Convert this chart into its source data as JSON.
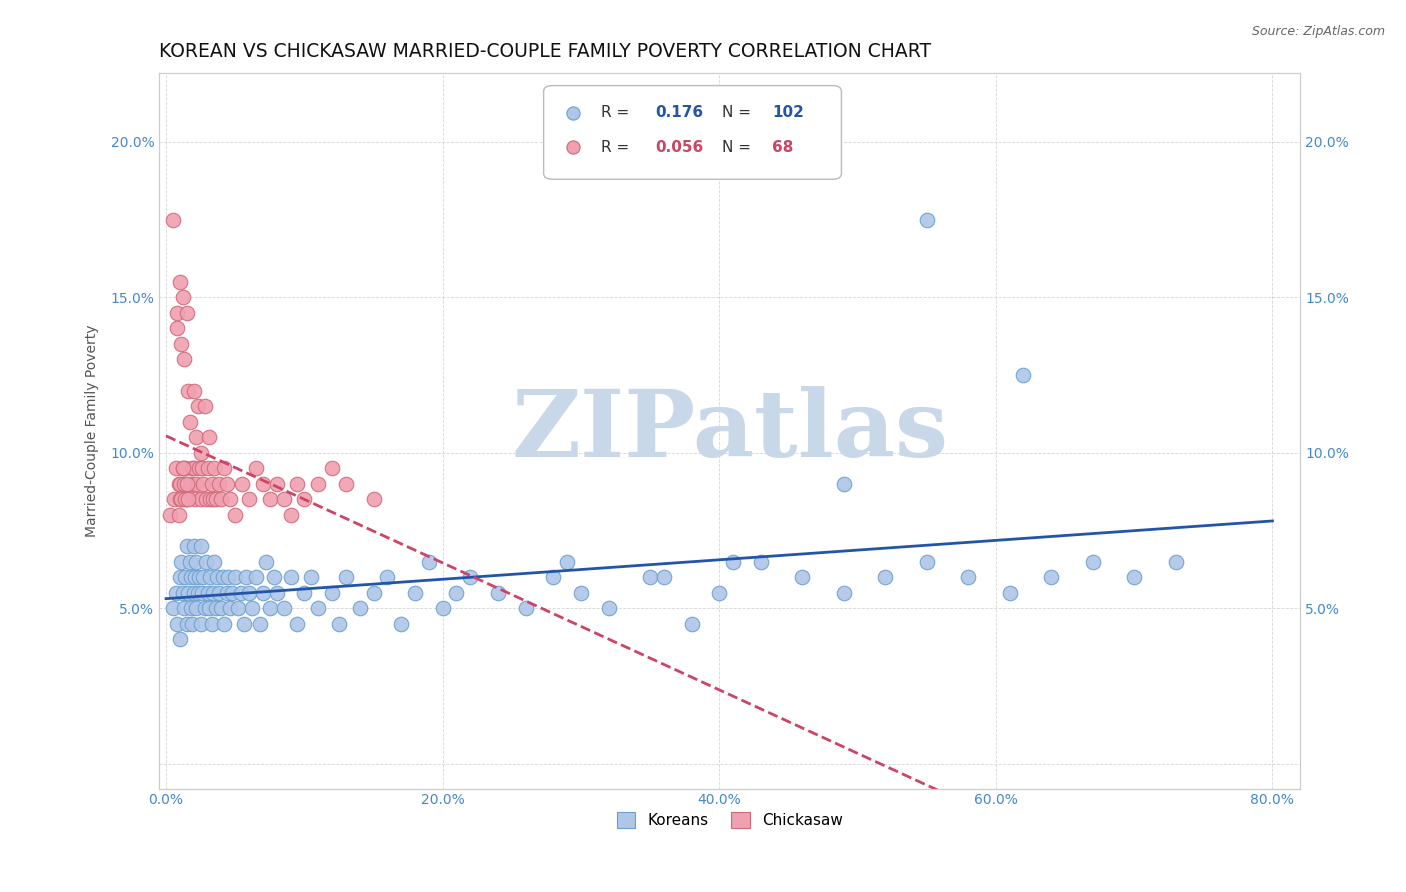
{
  "title": "KOREAN VS CHICKASAW MARRIED-COUPLE FAMILY POVERTY CORRELATION CHART",
  "source": "Source: ZipAtlas.com",
  "ylabel": "Married-Couple Family Poverty",
  "xlim": [
    -0.005,
    0.82
  ],
  "ylim": [
    -0.008,
    0.222
  ],
  "xticks": [
    0.0,
    0.2,
    0.4,
    0.6,
    0.8
  ],
  "yticks": [
    0.0,
    0.05,
    0.1,
    0.15,
    0.2
  ],
  "xtick_labels": [
    "0.0%",
    "20.0%",
    "40.0%",
    "60.0%",
    "80.0%"
  ],
  "ytick_labels": [
    "",
    "5.0%",
    "10.0%",
    "15.0%",
    "20.0%"
  ],
  "korean_R": 0.176,
  "korean_N": 102,
  "chickasaw_R": 0.056,
  "chickasaw_N": 68,
  "korean_color": "#aec6e8",
  "korean_edge": "#6a9fd0",
  "chickasaw_color": "#f0a0b0",
  "chickasaw_edge": "#d06878",
  "korean_trend_color": "#2255aa",
  "chickasaw_trend_color": "#cc4466",
  "watermark": "ZIPatlas",
  "watermark_color": "#c8d8e8",
  "title_fontsize": 13.5,
  "axis_label_fontsize": 10,
  "tick_fontsize": 10,
  "korean_x": [
    0.005,
    0.007,
    0.008,
    0.01,
    0.01,
    0.011,
    0.012,
    0.013,
    0.014,
    0.015,
    0.015,
    0.016,
    0.017,
    0.018,
    0.018,
    0.019,
    0.02,
    0.02,
    0.021,
    0.022,
    0.022,
    0.023,
    0.024,
    0.025,
    0.025,
    0.026,
    0.027,
    0.028,
    0.029,
    0.03,
    0.031,
    0.032,
    0.033,
    0.034,
    0.035,
    0.036,
    0.037,
    0.038,
    0.04,
    0.041,
    0.042,
    0.044,
    0.045,
    0.046,
    0.048,
    0.05,
    0.052,
    0.054,
    0.056,
    0.058,
    0.06,
    0.062,
    0.065,
    0.068,
    0.07,
    0.072,
    0.075,
    0.078,
    0.08,
    0.085,
    0.09,
    0.095,
    0.1,
    0.105,
    0.11,
    0.12,
    0.125,
    0.13,
    0.14,
    0.15,
    0.16,
    0.17,
    0.18,
    0.19,
    0.2,
    0.21,
    0.22,
    0.24,
    0.26,
    0.28,
    0.3,
    0.32,
    0.35,
    0.38,
    0.4,
    0.43,
    0.46,
    0.49,
    0.52,
    0.55,
    0.58,
    0.61,
    0.64,
    0.67,
    0.7,
    0.73,
    0.49,
    0.36,
    0.29,
    0.41,
    0.55,
    0.62
  ],
  "korean_y": [
    0.05,
    0.055,
    0.045,
    0.06,
    0.04,
    0.065,
    0.055,
    0.05,
    0.06,
    0.045,
    0.07,
    0.055,
    0.065,
    0.05,
    0.06,
    0.045,
    0.07,
    0.055,
    0.06,
    0.05,
    0.065,
    0.055,
    0.06,
    0.045,
    0.07,
    0.055,
    0.06,
    0.05,
    0.065,
    0.055,
    0.05,
    0.06,
    0.045,
    0.055,
    0.065,
    0.05,
    0.06,
    0.055,
    0.05,
    0.06,
    0.045,
    0.055,
    0.06,
    0.05,
    0.055,
    0.06,
    0.05,
    0.055,
    0.045,
    0.06,
    0.055,
    0.05,
    0.06,
    0.045,
    0.055,
    0.065,
    0.05,
    0.06,
    0.055,
    0.05,
    0.06,
    0.045,
    0.055,
    0.06,
    0.05,
    0.055,
    0.045,
    0.06,
    0.05,
    0.055,
    0.06,
    0.045,
    0.055,
    0.065,
    0.05,
    0.055,
    0.06,
    0.055,
    0.05,
    0.06,
    0.055,
    0.05,
    0.06,
    0.045,
    0.055,
    0.065,
    0.06,
    0.055,
    0.06,
    0.065,
    0.06,
    0.055,
    0.06,
    0.065,
    0.06,
    0.065,
    0.09,
    0.06,
    0.065,
    0.065,
    0.175,
    0.125
  ],
  "chickasaw_x": [
    0.003,
    0.005,
    0.006,
    0.007,
    0.008,
    0.008,
    0.009,
    0.01,
    0.01,
    0.011,
    0.012,
    0.012,
    0.013,
    0.014,
    0.015,
    0.015,
    0.016,
    0.017,
    0.018,
    0.019,
    0.02,
    0.02,
    0.021,
    0.022,
    0.022,
    0.023,
    0.024,
    0.025,
    0.025,
    0.026,
    0.027,
    0.028,
    0.029,
    0.03,
    0.031,
    0.032,
    0.033,
    0.034,
    0.035,
    0.036,
    0.038,
    0.04,
    0.042,
    0.044,
    0.046,
    0.05,
    0.055,
    0.06,
    0.065,
    0.07,
    0.075,
    0.08,
    0.085,
    0.09,
    0.095,
    0.1,
    0.11,
    0.12,
    0.13,
    0.15,
    0.009,
    0.01,
    0.011,
    0.012,
    0.013,
    0.014,
    0.015,
    0.016
  ],
  "chickasaw_y": [
    0.08,
    0.175,
    0.085,
    0.095,
    0.145,
    0.14,
    0.09,
    0.155,
    0.085,
    0.135,
    0.095,
    0.15,
    0.13,
    0.095,
    0.145,
    0.085,
    0.12,
    0.11,
    0.09,
    0.095,
    0.095,
    0.12,
    0.085,
    0.105,
    0.09,
    0.115,
    0.095,
    0.1,
    0.085,
    0.095,
    0.09,
    0.115,
    0.085,
    0.095,
    0.105,
    0.085,
    0.09,
    0.085,
    0.095,
    0.085,
    0.09,
    0.085,
    0.095,
    0.09,
    0.085,
    0.08,
    0.09,
    0.085,
    0.095,
    0.09,
    0.085,
    0.09,
    0.085,
    0.08,
    0.09,
    0.085,
    0.09,
    0.095,
    0.09,
    0.085,
    0.08,
    0.09,
    0.085,
    0.095,
    0.09,
    0.085,
    0.09,
    0.085
  ]
}
